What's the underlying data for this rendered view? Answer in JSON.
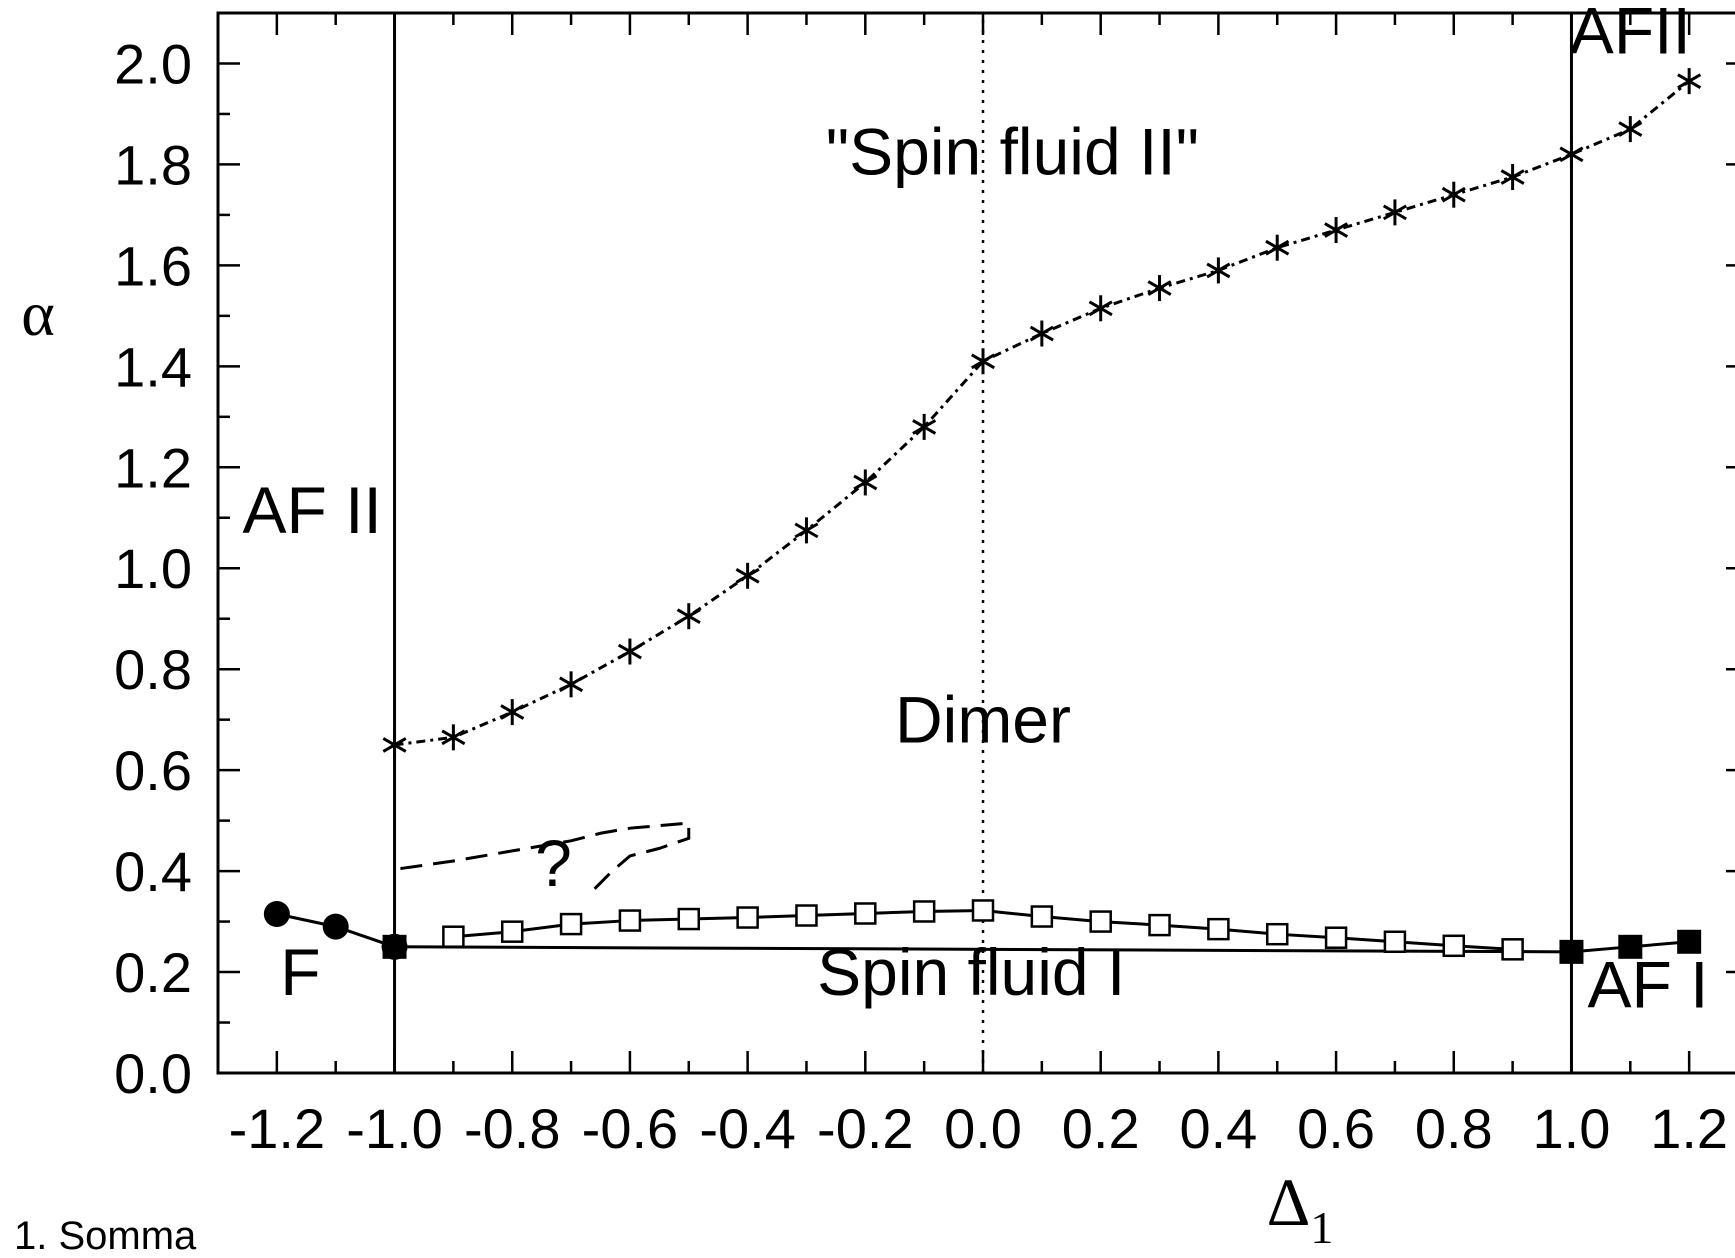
{
  "chart_data": {
    "type": "scatter",
    "title": "",
    "xlabel": "Δ",
    "xlabel_sub": "1",
    "ylabel": "α",
    "xlim": [
      -1.3,
      1.3
    ],
    "ylim": [
      0.0,
      2.1
    ],
    "x_ticks": [
      "-1.2",
      "-1.0",
      "-0.8",
      "-0.6",
      "-0.4",
      "-0.2",
      "0.0",
      "0.2",
      "0.4",
      "0.6",
      "0.8",
      "1.0",
      "1.2"
    ],
    "y_ticks": [
      "0.0",
      "0.2",
      "0.4",
      "0.6",
      "0.8",
      "1.0",
      "1.2",
      "1.4",
      "1.6",
      "1.8",
      "2.0"
    ],
    "grid": false,
    "series": [
      {
        "marker": "asterisk",
        "line": "dash-dot",
        "points": [
          [
            -1.0,
            0.65
          ],
          [
            -0.9,
            0.665
          ],
          [
            -0.8,
            0.715
          ],
          [
            -0.7,
            0.77
          ],
          [
            -0.6,
            0.835
          ],
          [
            -0.5,
            0.905
          ],
          [
            -0.4,
            0.985
          ],
          [
            -0.3,
            1.075
          ],
          [
            -0.2,
            1.17
          ],
          [
            -0.1,
            1.28
          ],
          [
            0.0,
            1.41
          ],
          [
            0.1,
            1.465
          ],
          [
            0.2,
            1.515
          ],
          [
            0.3,
            1.555
          ],
          [
            0.4,
            1.59
          ],
          [
            0.5,
            1.635
          ],
          [
            0.6,
            1.67
          ],
          [
            0.7,
            1.705
          ],
          [
            0.8,
            1.74
          ],
          [
            0.9,
            1.775
          ],
          [
            1.0,
            1.82
          ],
          [
            1.1,
            1.87
          ],
          [
            1.2,
            1.965
          ]
        ]
      },
      {
        "marker": "open-square",
        "line": "solid",
        "points": [
          [
            -0.9,
            0.27
          ],
          [
            -0.8,
            0.28
          ],
          [
            -0.7,
            0.295
          ],
          [
            -0.6,
            0.302
          ],
          [
            -0.5,
            0.305
          ],
          [
            -0.4,
            0.308
          ],
          [
            -0.3,
            0.312
          ],
          [
            -0.2,
            0.316
          ],
          [
            -0.1,
            0.32
          ],
          [
            0.0,
            0.322
          ],
          [
            0.1,
            0.31
          ],
          [
            0.2,
            0.3
          ],
          [
            0.3,
            0.293
          ],
          [
            0.4,
            0.285
          ],
          [
            0.5,
            0.275
          ],
          [
            0.6,
            0.268
          ],
          [
            0.7,
            0.26
          ],
          [
            0.8,
            0.252
          ],
          [
            0.9,
            0.245
          ]
        ]
      },
      {
        "marker": "filled-square",
        "line": "solid",
        "points": [
          [
            -1.0,
            0.25
          ],
          [
            1.0,
            0.24
          ],
          [
            1.1,
            0.25
          ],
          [
            1.2,
            0.26
          ]
        ]
      },
      {
        "marker": "filled-circle",
        "line": "solid",
        "points": [
          [
            -1.2,
            0.315
          ],
          [
            -1.1,
            0.29
          ],
          [
            -1.0,
            0.25
          ]
        ]
      }
    ],
    "boundaries": [
      {
        "style": "solid",
        "x": -1.0,
        "y_from": 0.0,
        "y_to": 2.1
      },
      {
        "style": "solid",
        "x": 1.0,
        "y_from": 0.0,
        "y_to": 2.1
      },
      {
        "style": "dotted",
        "x": 0.0,
        "y_from": 0.0,
        "y_to": 2.1
      },
      {
        "style": "dotted",
        "x": 1.0,
        "y_from": 0.0,
        "y_to": 1.82
      }
    ],
    "dashed_curves": [
      [
        [
          -0.99,
          0.405
        ],
        [
          -0.9,
          0.42
        ],
        [
          -0.8,
          0.44
        ],
        [
          -0.7,
          0.46
        ],
        [
          -0.65,
          0.475
        ],
        [
          -0.6,
          0.485
        ],
        [
          -0.55,
          0.49
        ],
        [
          -0.5,
          0.495
        ],
        [
          -0.5,
          0.465
        ],
        [
          -0.55,
          0.445
        ],
        [
          -0.6,
          0.43
        ],
        [
          -0.63,
          0.4
        ],
        [
          -0.66,
          0.365
        ]
      ]
    ],
    "annotations": [
      {
        "text": "\"Spin fluid II\"",
        "x": 0.05,
        "y": 1.78
      },
      {
        "text": "AFII",
        "x": 1.1,
        "y": 2.02
      },
      {
        "text": "AF II",
        "x": -1.14,
        "y": 1.07
      },
      {
        "text": "Dimer",
        "x": 0.0,
        "y": 0.655
      },
      {
        "text": "?",
        "x": -0.73,
        "y": 0.37
      },
      {
        "text": "F",
        "x": -1.16,
        "y": 0.155
      },
      {
        "text": "Spin fluid I",
        "x": -0.02,
        "y": 0.155
      },
      {
        "text": "AF I",
        "x": 1.13,
        "y": 0.13
      }
    ]
  },
  "footnote": "1. Somma"
}
